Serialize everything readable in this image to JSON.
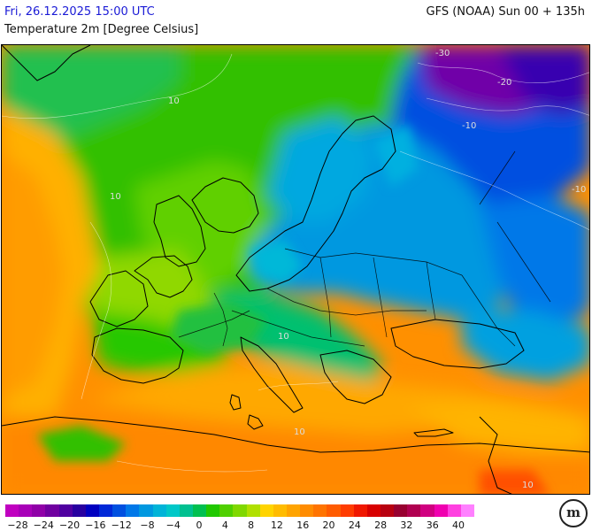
{
  "header": {
    "datetime": "Fri, 26.12.2025 15:00 UTC",
    "model_run": "GFS (NOAA) Sun 00 + 135h",
    "variable": "Temperature 2m [Degree Celsius]"
  },
  "map": {
    "region": "Europe",
    "isotherm_labels": [
      "10",
      "10",
      "-30",
      "-20",
      "-10",
      "-10",
      "10",
      "10",
      "10"
    ]
  },
  "legend": {
    "tick_labels": [
      "−28",
      "−24",
      "−20",
      "−16",
      "−12",
      "−8",
      "−4",
      "0",
      "4",
      "8",
      "12",
      "16",
      "20",
      "24",
      "28",
      "32",
      "36",
      "40"
    ],
    "colors": [
      "#c000c0",
      "#a800b8",
      "#9000a8",
      "#7000a0",
      "#5000a0",
      "#2800a0",
      "#0000c0",
      "#0028d8",
      "#0050e0",
      "#0078e8",
      "#0098e0",
      "#00b4d8",
      "#00c8c8",
      "#00c090",
      "#00c050",
      "#20c800",
      "#50d000",
      "#80d800",
      "#b0e000",
      "#ffd400",
      "#ffbc00",
      "#ffa400",
      "#ff8c00",
      "#ff7400",
      "#ff5c00",
      "#ff3c00",
      "#f01800",
      "#d80000",
      "#b80010",
      "#980030",
      "#b00050",
      "#d00080",
      "#f000b0",
      "#ff40e0",
      "#ff80ff"
    ]
  },
  "logo": {
    "text": "m"
  }
}
